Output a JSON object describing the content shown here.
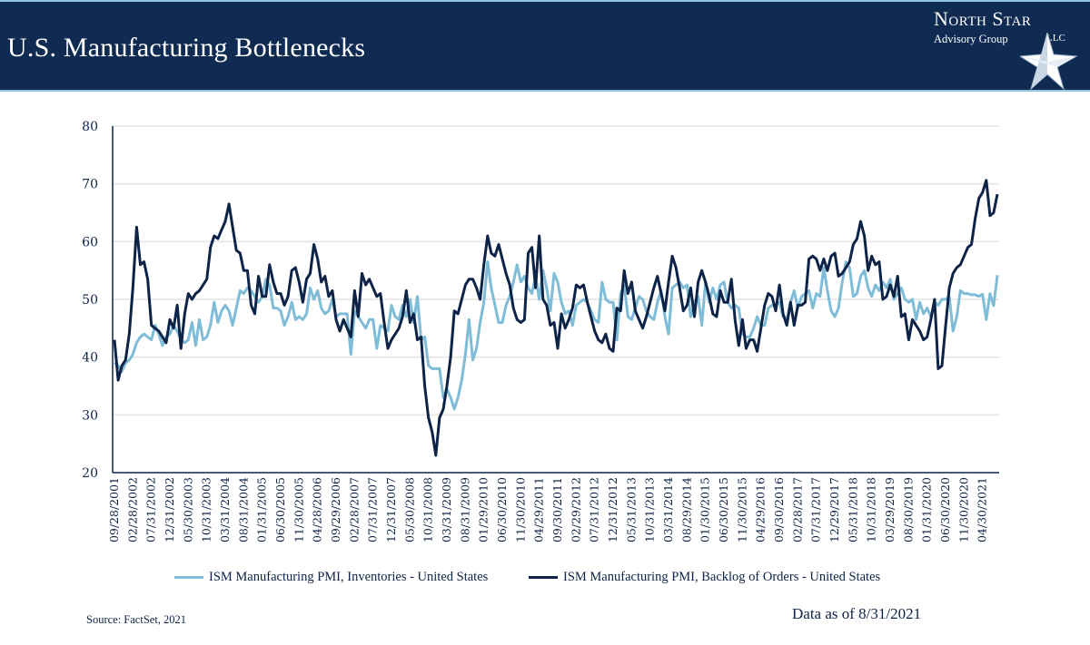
{
  "header": {
    "title": "U.S. Manufacturing Bottlenecks",
    "logo": {
      "name": "North Star",
      "subtitle": "Advisory Group",
      "suffix": "LLC"
    }
  },
  "colors": {
    "header_bg": "#0f2b52",
    "accent_line": "#8fc3e0",
    "backlog": "#0d2347",
    "inventories": "#7fbcd8",
    "grid": "#e3e3e3"
  },
  "footer": {
    "source": "Source: FactSet, 2021",
    "as_of": "Data as of 8/31/2021"
  },
  "chart_data": {
    "type": "line",
    "title": "",
    "xlabel": "",
    "ylabel": "",
    "ylim": [
      20,
      80
    ],
    "yticks": [
      20,
      30,
      40,
      50,
      60,
      70,
      80
    ],
    "grid": true,
    "legend_placement": "bottom",
    "x_start": "2001-09",
    "x_end": "2021-08",
    "x_frequency": "monthly",
    "xtick_labels": [
      "09/28/2001",
      "02/28/2002",
      "07/31/2002",
      "12/31/2002",
      "05/30/2003",
      "10/31/2003",
      "03/31/2004",
      "08/31/2004",
      "01/31/2005",
      "06/30/2005",
      "11/30/2005",
      "04/28/2006",
      "09/29/2006",
      "02/28/2007",
      "07/31/2007",
      "12/31/2007",
      "05/30/2008",
      "10/31/2008",
      "03/31/2009",
      "08/31/2009",
      "01/29/2010",
      "06/30/2010",
      "11/30/2010",
      "04/29/2011",
      "09/30/2011",
      "02/29/2012",
      "07/31/2012",
      "12/31/2012",
      "05/31/2013",
      "10/31/2013",
      "03/31/2014",
      "08/29/2014",
      "01/30/2015",
      "06/30/2015",
      "11/30/2015",
      "04/29/2016",
      "09/30/2016",
      "02/28/2017",
      "07/31/2017",
      "12/29/2017",
      "05/31/2018",
      "10/31/2018",
      "03/29/2019",
      "08/30/2019",
      "01/31/2020",
      "06/30/2020",
      "11/30/2020",
      "04/30/2021"
    ],
    "series": [
      {
        "name": "ISM Manufacturing PMI, Inventories - United States",
        "color": "#7fbcd8",
        "values": [
          39,
          38.5,
          37.5,
          39,
          39.5,
          40.5,
          42.5,
          43.5,
          44,
          43.5,
          43,
          45.5,
          44,
          42,
          43.5,
          44,
          45.5,
          44.5,
          43,
          42.5,
          43,
          46,
          42,
          46.5,
          43,
          43.5,
          45.5,
          49.5,
          46,
          48,
          49,
          48,
          45.5,
          48.5,
          51.5,
          51,
          52,
          51.5,
          50.5,
          49.5,
          50.5,
          53.5,
          52.5,
          48.5,
          48.5,
          48,
          45.5,
          47,
          49.5,
          46.5,
          47,
          46.5,
          47.5,
          52,
          50,
          51.5,
          48.5,
          47.5,
          48,
          50,
          47,
          47.5,
          47.5,
          47.5,
          40.5,
          48,
          47,
          46,
          45,
          46.5,
          46.5,
          41.5,
          45.5,
          45,
          44.5,
          49,
          47,
          46.5,
          49,
          47,
          50,
          46,
          50.5,
          43,
          43.5,
          38.5,
          38,
          38,
          38,
          33,
          34.5,
          33,
          31,
          33,
          36,
          40.5,
          46.5,
          39.5,
          41.5,
          46,
          49.5,
          56.5,
          52,
          49,
          46,
          46,
          49,
          50.5,
          53,
          56,
          53,
          54,
          52,
          51,
          54,
          50,
          55,
          52,
          48,
          54.5,
          53,
          49.5,
          47.5,
          48,
          45.5,
          49,
          49.5,
          50,
          49.5,
          48,
          46.5,
          46,
          53,
          50,
          49.5,
          49.5,
          43,
          51,
          52.5,
          47,
          46.5,
          48.5,
          50.5,
          50,
          48,
          47,
          46.5,
          49.5,
          51.5,
          47,
          44,
          52,
          52.5,
          53,
          52,
          52.5,
          47,
          49.5,
          50.5,
          45.5,
          53,
          49.5,
          52,
          50,
          52.5,
          53,
          49.5,
          48.5,
          49,
          48.5,
          44,
          43.5,
          43.5,
          45,
          47,
          45.5,
          45.5,
          48.5,
          49,
          49,
          49.5,
          47,
          46.5,
          49.5,
          51.5,
          48.5,
          50.5,
          51,
          51.5,
          48.5,
          51,
          50.5,
          55.5,
          51.5,
          48,
          47,
          48.5,
          53,
          56.5,
          55.5,
          50.5,
          51,
          54,
          55,
          52,
          50.5,
          52.5,
          51.5,
          53,
          52,
          53.5,
          50,
          51,
          52,
          50,
          49.5,
          50,
          46.5,
          49.5,
          47.5,
          48.5,
          47,
          49.5,
          49,
          50,
          50,
          50.5,
          44.5,
          47,
          51.5,
          51,
          51,
          50.8,
          50.8,
          50.5,
          50.9,
          46.5,
          51,
          48.9,
          54.2
        ]
      },
      {
        "name": "ISM Manufacturing PMI, Backlog of Orders - United States",
        "color": "#0d2347",
        "values": [
          43,
          36,
          38.5,
          39.5,
          44,
          52,
          62.5,
          56,
          56.5,
          53.5,
          45.5,
          45,
          44.5,
          43.5,
          42.5,
          46.5,
          45,
          49,
          41.5,
          47.5,
          51,
          50,
          51,
          51.5,
          52.5,
          53.5,
          59,
          61,
          60.5,
          62,
          63.5,
          66.5,
          62.5,
          58.5,
          58,
          55,
          55,
          49,
          47.5,
          54,
          50.5,
          50.5,
          56,
          53,
          51,
          51,
          49,
          50.5,
          55,
          55.5,
          53,
          49.5,
          53.5,
          54.5,
          59.5,
          57,
          53,
          54,
          50.5,
          51.5,
          46.5,
          44.5,
          46.5,
          45,
          43.5,
          51.5,
          47,
          54.5,
          52.5,
          53.5,
          52,
          50.5,
          51,
          46,
          41.5,
          43,
          44,
          45,
          47,
          51.5,
          46,
          47.5,
          43,
          43.5,
          35,
          29.5,
          27,
          23,
          29.5,
          31,
          35,
          40,
          48,
          47.5,
          50,
          52.5,
          53.5,
          53.5,
          52,
          50,
          56,
          61,
          58,
          57.5,
          59.5,
          57,
          54.5,
          52.5,
          48.5,
          46.5,
          46,
          46.5,
          58,
          59,
          52,
          61,
          50,
          49,
          45.5,
          46,
          41.5,
          47.5,
          45,
          46.5,
          48.5,
          52.5,
          52,
          52.5,
          49.5,
          47,
          44.5,
          43,
          42.5,
          44,
          41.5,
          41,
          48.5,
          48,
          55,
          51,
          53,
          48,
          46.5,
          45,
          47,
          49.5,
          52,
          54,
          51,
          48,
          53,
          57.5,
          55.5,
          52,
          48,
          49,
          52,
          47,
          53,
          55,
          53,
          50.5,
          47.5,
          47,
          51.5,
          49.5,
          49.5,
          53.5,
          46.5,
          42,
          46.5,
          41.5,
          43,
          43,
          41,
          45,
          49,
          51,
          50.5,
          48,
          52.5,
          47.5,
          45.5,
          49.5,
          45.5,
          49,
          49,
          49.5,
          57,
          57.5,
          57,
          55,
          57,
          55,
          57.5,
          58,
          54,
          54.5,
          55.5,
          56.5,
          59.5,
          60.5,
          63.5,
          61,
          55,
          57.5,
          56,
          56.5,
          50,
          50.5,
          52.5,
          50.5,
          54,
          47,
          47.5,
          43,
          46.5,
          45.5,
          44.5,
          43,
          43.5,
          46.5,
          50,
          38,
          38.5,
          45.5,
          52,
          54.5,
          55.5,
          56,
          57.5,
          59,
          59.5,
          64,
          67.5,
          68.5,
          70.6,
          64.5,
          65,
          68.2
        ]
      }
    ]
  }
}
